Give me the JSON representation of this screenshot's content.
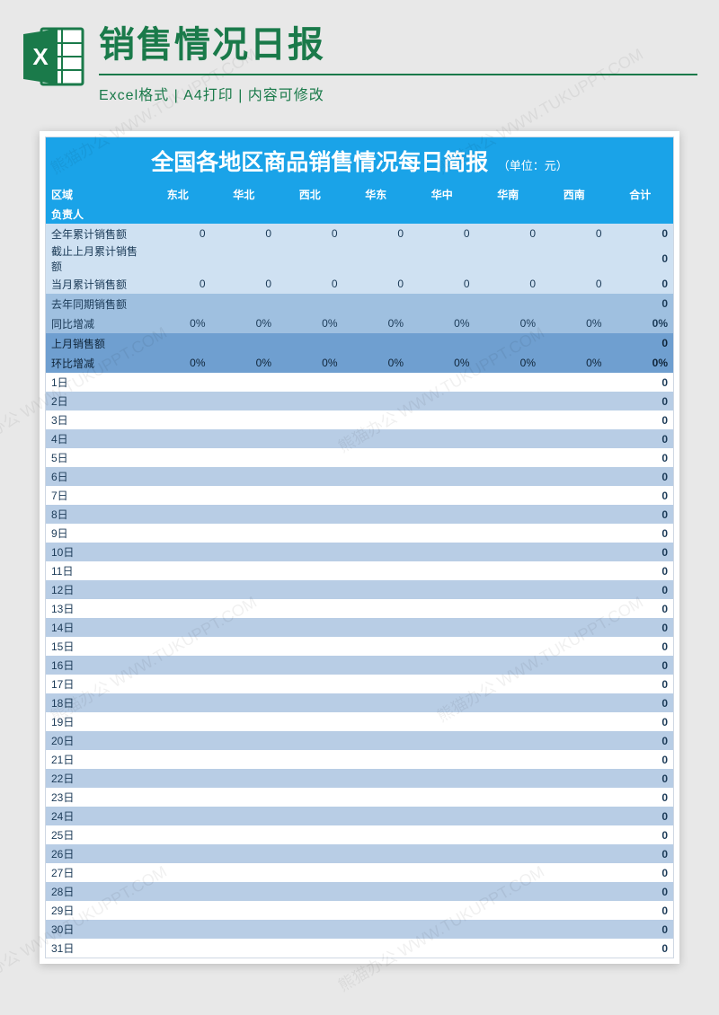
{
  "watermark_text": "熊猫办公 WWW.TUKUPPT.COM",
  "header": {
    "title": "销售情况日报",
    "subtitle": "Excel格式 | A4打印 | 内容可修改"
  },
  "sheet": {
    "title": "全国各地区商品销售情况每日简报",
    "unit_label": "（单位：元）",
    "region_label": "区域",
    "person_label": "负责人",
    "regions": [
      "东北",
      "华北",
      "西北",
      "华东",
      "华中",
      "华南",
      "西南",
      "合计"
    ],
    "summary_rows": [
      {
        "label": "全年累计销售额",
        "values": [
          "0",
          "0",
          "0",
          "0",
          "0",
          "0",
          "0",
          "0"
        ],
        "style": "pale"
      },
      {
        "label": "截止上月累计销售额",
        "values": [
          "",
          "",
          "",
          "",
          "",
          "",
          "",
          "0"
        ],
        "style": "paler"
      },
      {
        "label": "当月累计销售额",
        "values": [
          "0",
          "0",
          "0",
          "0",
          "0",
          "0",
          "0",
          "0"
        ],
        "style": "pale"
      },
      {
        "label": "去年同期销售额",
        "values": [
          "",
          "",
          "",
          "",
          "",
          "",
          "",
          "0"
        ],
        "style": "mid"
      },
      {
        "label": "同比增减",
        "values": [
          "0%",
          "0%",
          "0%",
          "0%",
          "0%",
          "0%",
          "0%",
          "0%"
        ],
        "style": "mid"
      },
      {
        "label": "上月销售额",
        "values": [
          "",
          "",
          "",
          "",
          "",
          "",
          "",
          "0"
        ],
        "style": "strong"
      },
      {
        "label": "环比增减",
        "values": [
          "0%",
          "0%",
          "0%",
          "0%",
          "0%",
          "0%",
          "0%",
          "0%"
        ],
        "style": "strong"
      }
    ],
    "day_suffix": "日",
    "day_count": 31,
    "day_total": "0"
  },
  "colors": {
    "page_bg": "#e8e8e8",
    "brand_green": "#1a7a4a",
    "title_blue": "#1aa3e8",
    "pale_blue": "#cfe1f2",
    "mid_blue": "#9fc0e0",
    "strong_blue": "#6f9fd0",
    "stripe_blue": "#b8cde5",
    "white": "#ffffff"
  }
}
